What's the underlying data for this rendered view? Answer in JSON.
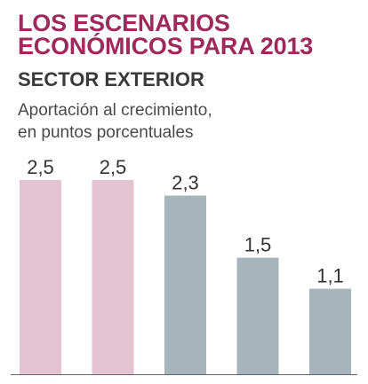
{
  "header": {
    "title_lines": [
      "LOS ESCENARIOS",
      "ECONÓMICOS PARA 2013"
    ],
    "subtitle": "SECTOR EXTERIOR",
    "description_lines": [
      "Aportación al crecimiento,",
      "en puntos porcentuales"
    ]
  },
  "colors": {
    "title": "#9e2a5c",
    "highlight_bar": "#e3c3cf",
    "neutral_bar": "#a6b5bc",
    "label": "#333333",
    "baseline": "#666666"
  },
  "chart_data": {
    "type": "bar",
    "title": "SECTOR EXTERIOR",
    "subtitle": "Aportación al crecimiento, en puntos porcentuales",
    "categories": [
      "",
      "",
      "",
      "",
      ""
    ],
    "values": [
      2.5,
      2.5,
      2.3,
      1.5,
      1.1
    ],
    "value_labels": [
      "2,5",
      "2,5",
      "2,3",
      "1,5",
      "1,1"
    ],
    "bar_color_keys": [
      "highlight_bar",
      "highlight_bar",
      "neutral_bar",
      "neutral_bar",
      "neutral_bar"
    ],
    "ylim": [
      0,
      2.5
    ],
    "grid": false,
    "legend": "none",
    "xlabel": "",
    "ylabel": ""
  }
}
